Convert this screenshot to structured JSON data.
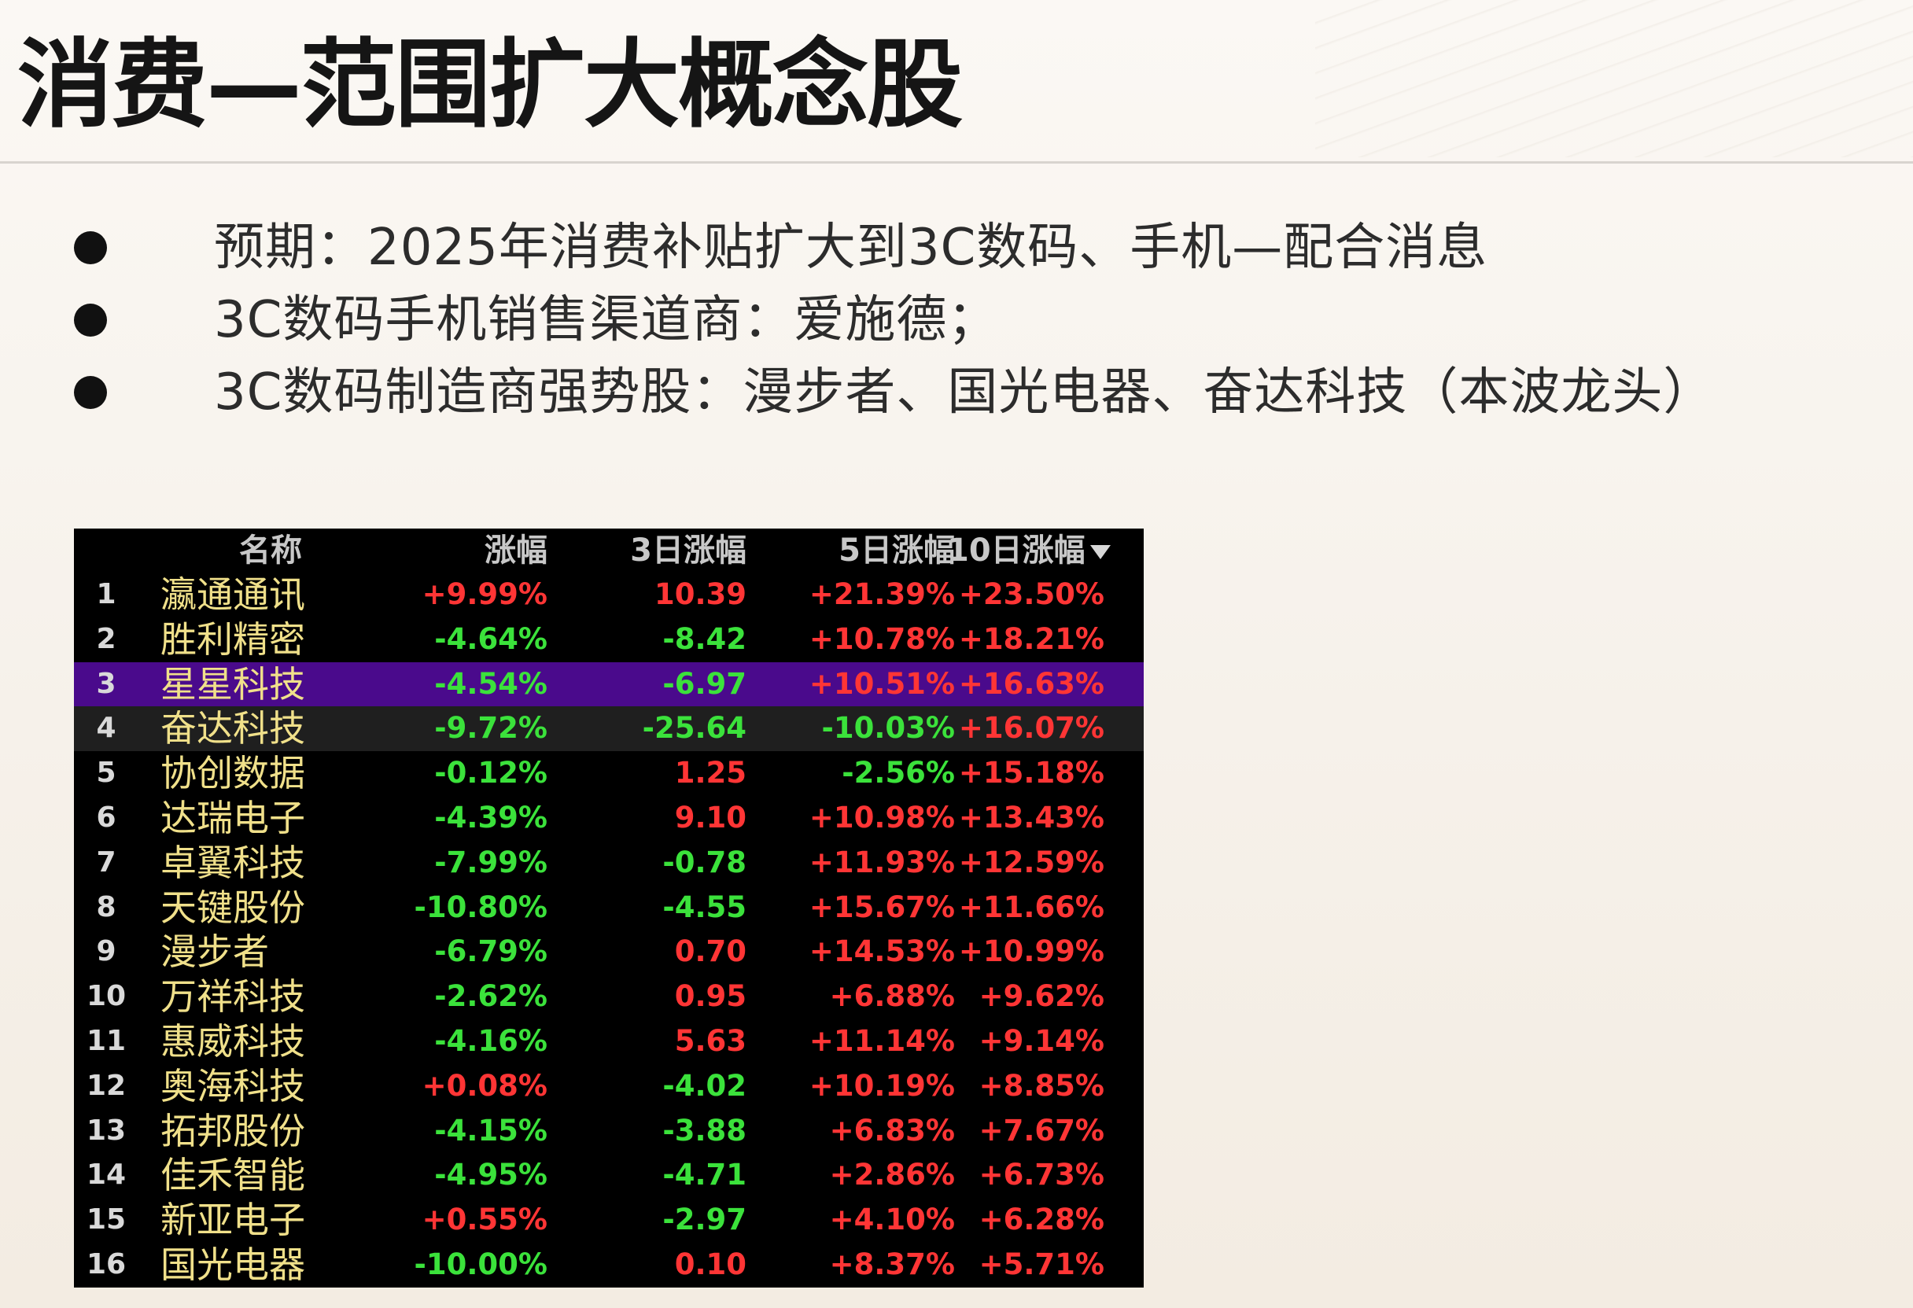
{
  "title": "消费—范围扩大概念股",
  "bullets": [
    "预期：2025年消费补贴扩大到3C数码、手机—配合消息",
    "3C数码手机销售渠道商：爱施德；",
    "3C数码制造商强势股：漫步者、国光电器、奋达科技（本波龙头）"
  ],
  "table": {
    "headers": {
      "name": "名称",
      "change": "涨幅",
      "change_3d": "3日涨幅",
      "change_5d": "5日涨幅",
      "change_10d": "10日涨幅"
    },
    "sort_icon": "arrow-down-icon",
    "colors": {
      "up": "#ff3535",
      "down": "#3be23b",
      "name": "#f0e08a",
      "highlight_purple": "#4a0a8c",
      "highlight_gray": "#1f1f1f"
    },
    "rows": [
      {
        "idx": "1",
        "name": "瀛通通讯",
        "change": "+9.99%",
        "change_3d": "10.39",
        "change_5d": "+21.39%",
        "change_10d": "+23.50%",
        "highlight": ""
      },
      {
        "idx": "2",
        "name": "胜利精密",
        "change": "-4.64%",
        "change_3d": "-8.42",
        "change_5d": "+10.78%",
        "change_10d": "+18.21%",
        "highlight": ""
      },
      {
        "idx": "3",
        "name": "星星科技",
        "change": "-4.54%",
        "change_3d": "-6.97",
        "change_5d": "+10.51%",
        "change_10d": "+16.63%",
        "highlight": "purple"
      },
      {
        "idx": "4",
        "name": "奋达科技",
        "change": "-9.72%",
        "change_3d": "-25.64",
        "change_5d": "-10.03%",
        "change_10d": "+16.07%",
        "highlight": "gray"
      },
      {
        "idx": "5",
        "name": "协创数据",
        "change": "-0.12%",
        "change_3d": "1.25",
        "change_5d": "-2.56%",
        "change_10d": "+15.18%",
        "highlight": ""
      },
      {
        "idx": "6",
        "name": "达瑞电子",
        "change": "-4.39%",
        "change_3d": "9.10",
        "change_5d": "+10.98%",
        "change_10d": "+13.43%",
        "highlight": ""
      },
      {
        "idx": "7",
        "name": "卓翼科技",
        "change": "-7.99%",
        "change_3d": "-0.78",
        "change_5d": "+11.93%",
        "change_10d": "+12.59%",
        "highlight": ""
      },
      {
        "idx": "8",
        "name": "天键股份",
        "change": "-10.80%",
        "change_3d": "-4.55",
        "change_5d": "+15.67%",
        "change_10d": "+11.66%",
        "highlight": ""
      },
      {
        "idx": "9",
        "name": "漫步者",
        "change": "-6.79%",
        "change_3d": "0.70",
        "change_5d": "+14.53%",
        "change_10d": "+10.99%",
        "highlight": ""
      },
      {
        "idx": "10",
        "name": "万祥科技",
        "change": "-2.62%",
        "change_3d": "0.95",
        "change_5d": "+6.88%",
        "change_10d": "+9.62%",
        "highlight": ""
      },
      {
        "idx": "11",
        "name": "惠威科技",
        "change": "-4.16%",
        "change_3d": "5.63",
        "change_5d": "+11.14%",
        "change_10d": "+9.14%",
        "highlight": ""
      },
      {
        "idx": "12",
        "name": "奥海科技",
        "change": "+0.08%",
        "change_3d": "-4.02",
        "change_5d": "+10.19%",
        "change_10d": "+8.85%",
        "highlight": ""
      },
      {
        "idx": "13",
        "name": "拓邦股份",
        "change": "-4.15%",
        "change_3d": "-3.88",
        "change_5d": "+6.83%",
        "change_10d": "+7.67%",
        "highlight": ""
      },
      {
        "idx": "14",
        "name": "佳禾智能",
        "change": "-4.95%",
        "change_3d": "-4.71",
        "change_5d": "+2.86%",
        "change_10d": "+6.73%",
        "highlight": ""
      },
      {
        "idx": "15",
        "name": "新亚电子",
        "change": "+0.55%",
        "change_3d": "-2.97",
        "change_5d": "+4.10%",
        "change_10d": "+6.28%",
        "highlight": ""
      },
      {
        "idx": "16",
        "name": "国光电器",
        "change": "-10.00%",
        "change_3d": "0.10",
        "change_5d": "+8.37%",
        "change_10d": "+5.71%",
        "highlight": ""
      }
    ]
  }
}
